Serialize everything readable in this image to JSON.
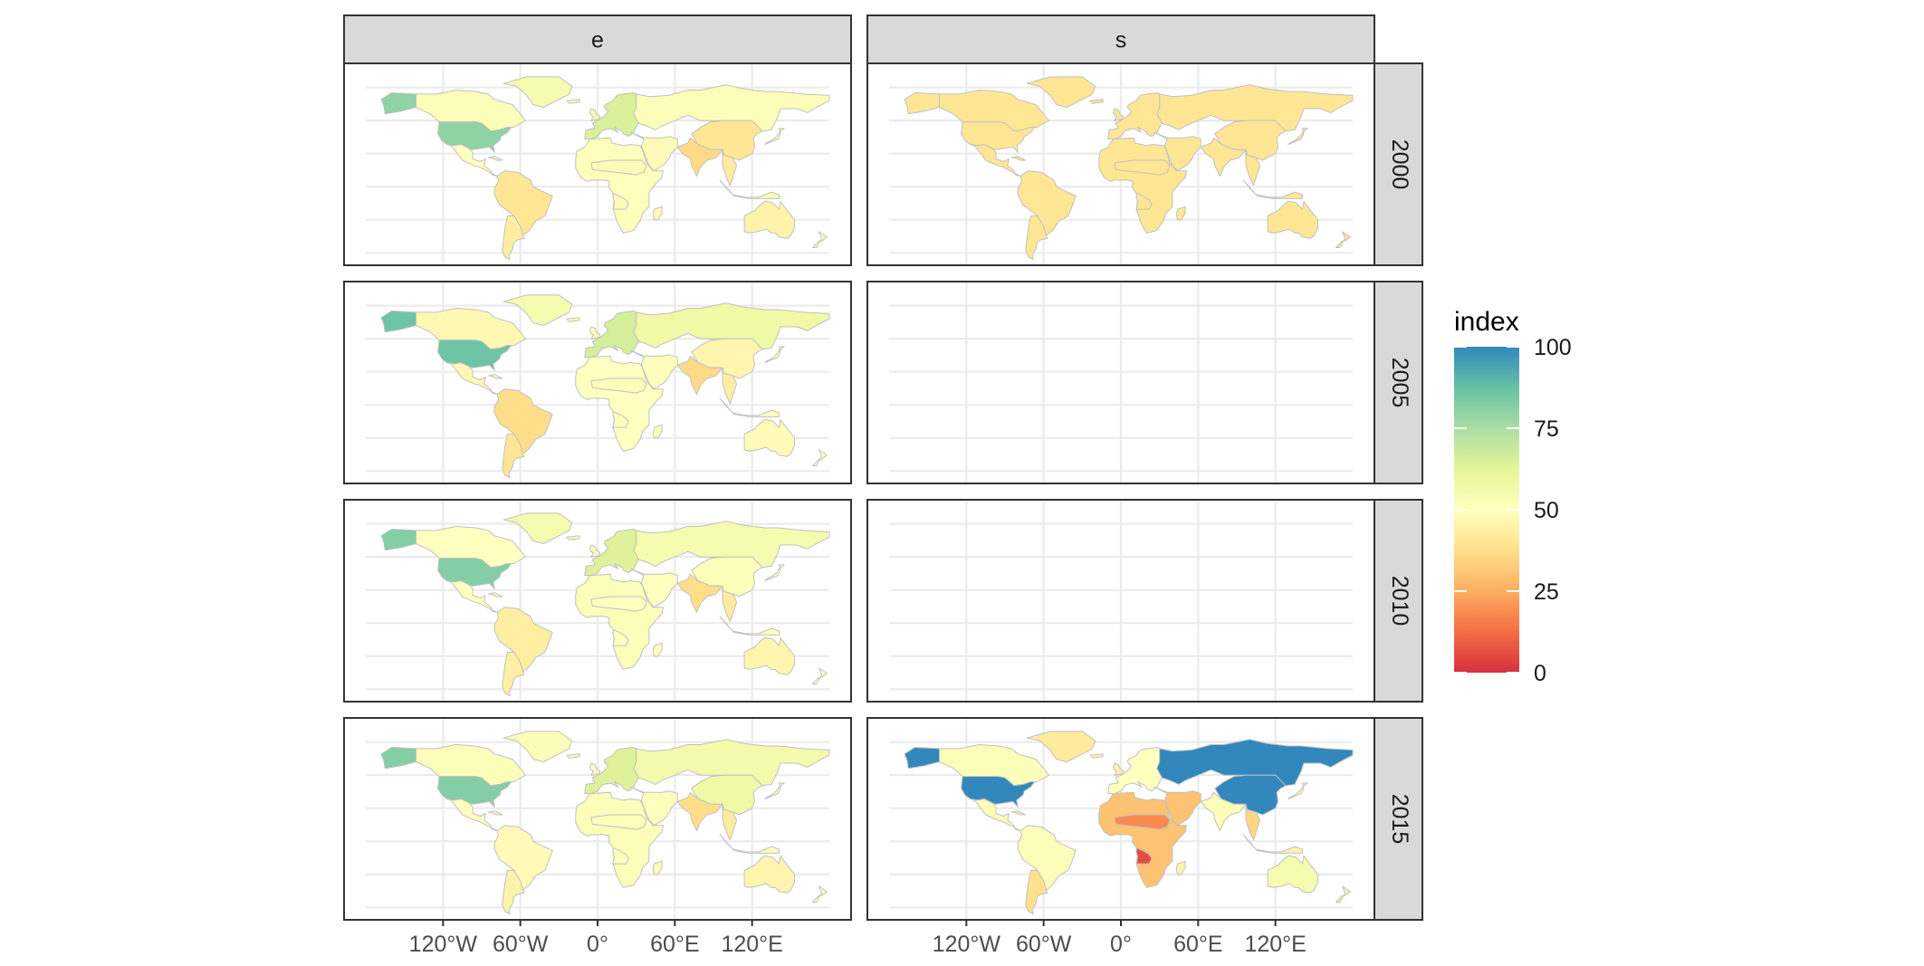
{
  "facets": {
    "columns": [
      "e",
      "s"
    ],
    "rows": [
      "2000",
      "2005",
      "2010",
      "2015"
    ]
  },
  "x_axis": {
    "tick_labels": [
      "120°W",
      "60°W",
      "0°",
      "60°E",
      "120°E"
    ],
    "tick_values": [
      -120,
      -60,
      0,
      60,
      120
    ],
    "range": [
      -180,
      180
    ]
  },
  "legend": {
    "title": "index",
    "tick_labels": [
      "100",
      "75",
      "50",
      "25",
      "0"
    ],
    "tick_values": [
      100,
      75,
      50,
      25,
      0
    ],
    "colors": [
      "#d7303f",
      "#f46d43",
      "#fdae61",
      "#fee08b",
      "#ffffbf",
      "#e6f598",
      "#abdda4",
      "#66c2a5",
      "#3288bd"
    ],
    "placement": "right"
  },
  "chart_data": {
    "type": "choropleth-facets",
    "scale": {
      "min": 0,
      "max": 100
    },
    "panels": [
      {
        "column": "e",
        "row": "2000",
        "has_data": true,
        "regions": {
          "default": 48,
          "usa": 80,
          "canada": 52,
          "alaska": 80,
          "greenland": 55,
          "mexico": 50,
          "south_america": 40,
          "argentina": 43,
          "europe": 65,
          "russia": 52,
          "africa": 51,
          "india": 36,
          "china": 40,
          "se_asia": 42,
          "australia": 45
        }
      },
      {
        "column": "e",
        "row": "2005",
        "has_data": true,
        "regions": {
          "default": 49,
          "usa": 86,
          "canada": 47,
          "alaska": 86,
          "greenland": 55,
          "mexico": 47,
          "south_america": 37,
          "argentina": 40,
          "europe": 66,
          "russia": 58,
          "africa": 50,
          "india": 36,
          "china": 46,
          "se_asia": 43,
          "australia": 48
        }
      },
      {
        "column": "e",
        "row": "2010",
        "has_data": true,
        "regions": {
          "default": 50,
          "usa": 82,
          "canada": 50,
          "alaska": 82,
          "greenland": 55,
          "mexico": 50,
          "south_america": 43,
          "argentina": 44,
          "europe": 64,
          "russia": 55,
          "africa": 52,
          "india": 37,
          "china": 52,
          "se_asia": 42,
          "australia": 46
        }
      },
      {
        "column": "e",
        "row": "2015",
        "has_data": true,
        "regions": {
          "default": 51,
          "usa": 82,
          "canada": 52,
          "alaska": 82,
          "greenland": 53,
          "mexico": 50,
          "south_america": 48,
          "argentina": 45,
          "europe": 64,
          "russia": 56,
          "africa": 52,
          "india": 37,
          "china": 58,
          "se_asia": 42,
          "australia": 46
        }
      },
      {
        "column": "s",
        "row": "2000",
        "has_data": true,
        "regions": {
          "default": 40,
          "usa": 40,
          "canada": 40,
          "alaska": 40,
          "greenland": 40,
          "mexico": 40,
          "south_america": 40,
          "argentina": 40,
          "europe": 40,
          "russia": 40,
          "africa": 40,
          "india": 40,
          "china": 40,
          "se_asia": 40,
          "australia": 40
        }
      },
      {
        "column": "s",
        "row": "2005",
        "has_data": false,
        "regions": {}
      },
      {
        "column": "s",
        "row": "2010",
        "has_data": false,
        "regions": {}
      },
      {
        "column": "s",
        "row": "2015",
        "has_data": true,
        "regions": {
          "default": 45,
          "usa": 100,
          "canada": 52,
          "alaska": 100,
          "greenland": 42,
          "mexico": 53,
          "south_america": 52,
          "argentina": 38,
          "europe": 50,
          "russia": 100,
          "africa": 30,
          "india": 52,
          "china": 100,
          "se_asia": 35,
          "australia": 55,
          "sahel": 18,
          "angola": 6,
          "middle_east": 30
        }
      }
    ]
  }
}
